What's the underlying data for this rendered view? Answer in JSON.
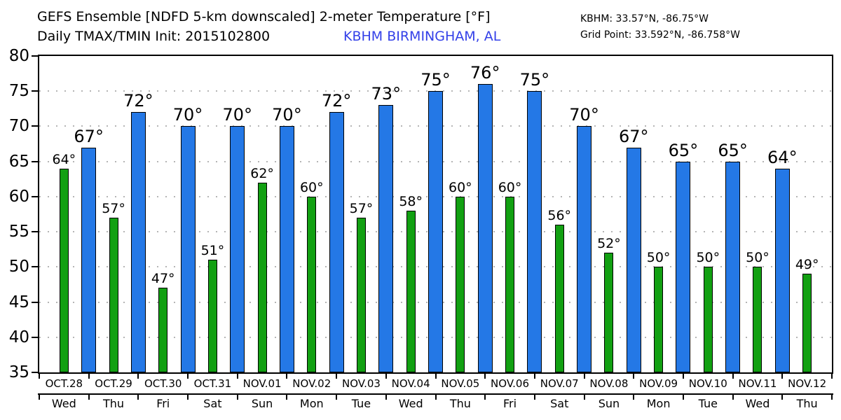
{
  "header": {
    "title": "GEFS Ensemble [NDFD 5-km downscaled] 2-meter Temperature [°F]",
    "subtitle": "Daily TMAX/TMIN Init: 2015102800",
    "station_name": "KBHM BIRMINGHAM, AL",
    "station_coords": "KBHM: 33.57°N, -86.75°W",
    "grid_point": "Grid Point: 33.592°N, -86.758°W"
  },
  "colors": {
    "tmax_bar": "#2478E6",
    "tmin_bar": "#12A012",
    "bar_outline": "#000000",
    "station_text": "#3340E8",
    "gridline": "#B5B5B5",
    "axis": "#000000",
    "background": "#FFFFFF",
    "text": "#000000"
  },
  "chart_data": {
    "type": "bar",
    "title": "GEFS Ensemble [NDFD 5-km downscaled] 2-meter Temperature [°F]",
    "subtitle": "Daily TMAX/TMIN Init: 2015102800",
    "value_suffix": "°",
    "ylim": [
      35,
      80
    ],
    "yticks": [
      80,
      75,
      70,
      65,
      60,
      55,
      50,
      45,
      40,
      35
    ],
    "grid": "dotted horizontal lines at each 5°F",
    "legend": "none (green = TMIN, blue = TMAX)",
    "layout_note": "TMIN green bar centered mid-day; TMAX blue bar centered on day-end boundary tick; NOV.12 has no TMAX bar",
    "series": [
      {
        "name": "TMIN",
        "color_key": "tmin_bar"
      },
      {
        "name": "TMAX",
        "color_key": "tmax_bar"
      }
    ],
    "days": [
      {
        "date": "OCT.28",
        "weekday": "Wed",
        "tmin": 64,
        "tmax": 67
      },
      {
        "date": "OCT.29",
        "weekday": "Thu",
        "tmin": 57,
        "tmax": 72
      },
      {
        "date": "OCT.30",
        "weekday": "Fri",
        "tmin": 47,
        "tmax": 70
      },
      {
        "date": "OCT.31",
        "weekday": "Sat",
        "tmin": 51,
        "tmax": 70
      },
      {
        "date": "NOV.01",
        "weekday": "Sun",
        "tmin": 62,
        "tmax": 70
      },
      {
        "date": "NOV.02",
        "weekday": "Mon",
        "tmin": 60,
        "tmax": 72
      },
      {
        "date": "NOV.03",
        "weekday": "Tue",
        "tmin": 57,
        "tmax": 73
      },
      {
        "date": "NOV.04",
        "weekday": "Wed",
        "tmin": 58,
        "tmax": 75
      },
      {
        "date": "NOV.05",
        "weekday": "Thu",
        "tmin": 60,
        "tmax": 76
      },
      {
        "date": "NOV.06",
        "weekday": "Fri",
        "tmin": 60,
        "tmax": 75
      },
      {
        "date": "NOV.07",
        "weekday": "Sat",
        "tmin": 56,
        "tmax": 70
      },
      {
        "date": "NOV.08",
        "weekday": "Sun",
        "tmin": 52,
        "tmax": 67
      },
      {
        "date": "NOV.09",
        "weekday": "Mon",
        "tmin": 50,
        "tmax": 65
      },
      {
        "date": "NOV.10",
        "weekday": "Tue",
        "tmin": 50,
        "tmax": 65
      },
      {
        "date": "NOV.11",
        "weekday": "Wed",
        "tmin": 50,
        "tmax": 64
      },
      {
        "date": "NOV.12",
        "weekday": "Thu",
        "tmin": 49,
        "tmax": null
      }
    ]
  }
}
